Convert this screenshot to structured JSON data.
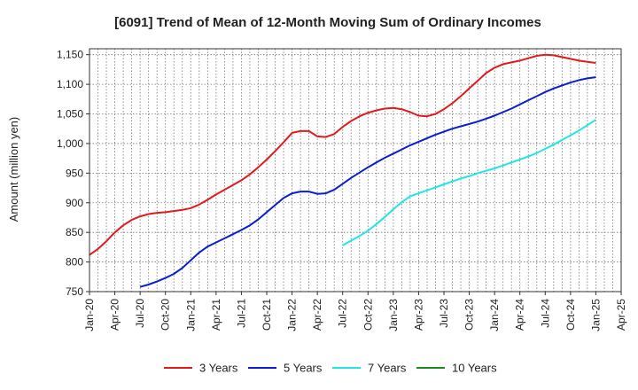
{
  "chart_data": {
    "type": "line",
    "title": "[6091]  Trend of Mean of 12-Month Moving Sum of Ordinary Incomes",
    "xlabel": "",
    "ylabel": "Amount (million yen)",
    "ylim": [
      750,
      1160
    ],
    "yticks": [
      750,
      800,
      850,
      900,
      950,
      1000,
      1050,
      1100,
      1150
    ],
    "ytick_labels": [
      "750",
      "800",
      "850",
      "900",
      "950",
      "1,000",
      "1,050",
      "1,100",
      "1,150"
    ],
    "xlim": [
      "2020-01",
      "2025-04"
    ],
    "xticks": [
      "2020-01",
      "2020-04",
      "2020-07",
      "2020-10",
      "2021-01",
      "2021-04",
      "2021-07",
      "2021-10",
      "2022-01",
      "2022-04",
      "2022-07",
      "2022-10",
      "2023-01",
      "2023-04",
      "2023-07",
      "2023-10",
      "2024-01",
      "2024-04",
      "2024-07",
      "2024-10",
      "2025-01",
      "2025-04"
    ],
    "xtick_labels": [
      "Jan-20",
      "Apr-20",
      "Jul-20",
      "Oct-20",
      "Jan-21",
      "Apr-21",
      "Jul-21",
      "Oct-21",
      "Jan-22",
      "Apr-22",
      "Jul-22",
      "Oct-22",
      "Jan-23",
      "Apr-23",
      "Jul-23",
      "Oct-23",
      "Jan-24",
      "Apr-24",
      "Jul-24",
      "Oct-24",
      "Jan-25",
      "Apr-25"
    ],
    "grid": true,
    "legend_position": "bottom",
    "series": [
      {
        "name": "3 Years",
        "color": "#e31a1c",
        "x": [
          "2020-01",
          "2020-02",
          "2020-03",
          "2020-04",
          "2020-05",
          "2020-06",
          "2020-07",
          "2020-08",
          "2020-09",
          "2020-10",
          "2020-11",
          "2020-12",
          "2021-01",
          "2021-02",
          "2021-03",
          "2021-04",
          "2021-05",
          "2021-06",
          "2021-07",
          "2021-08",
          "2021-09",
          "2021-10",
          "2021-11",
          "2021-12",
          "2022-01",
          "2022-02",
          "2022-03",
          "2022-04",
          "2022-05",
          "2022-06",
          "2022-07",
          "2022-08",
          "2022-09",
          "2022-10",
          "2022-11",
          "2022-12",
          "2023-01",
          "2023-02",
          "2023-03",
          "2023-04",
          "2023-05",
          "2023-06",
          "2023-07",
          "2023-08",
          "2023-09",
          "2023-10",
          "2023-11",
          "2023-12",
          "2024-01",
          "2024-02",
          "2024-03",
          "2024-04",
          "2024-05",
          "2024-06",
          "2024-07",
          "2024-08",
          "2024-09",
          "2024-10",
          "2024-11",
          "2024-12",
          "2025-01"
        ],
        "values": [
          812,
          822,
          835,
          850,
          862,
          871,
          877,
          881,
          883,
          884,
          886,
          888,
          891,
          897,
          905,
          914,
          922,
          930,
          938,
          948,
          960,
          973,
          987,
          1002,
          1018,
          1021,
          1021,
          1012,
          1011,
          1016,
          1028,
          1038,
          1046,
          1052,
          1056,
          1059,
          1060,
          1058,
          1053,
          1047,
          1046,
          1050,
          1058,
          1068,
          1080,
          1093,
          1106,
          1119,
          1128,
          1134,
          1137,
          1140,
          1144,
          1148,
          1150,
          1149,
          1146,
          1143,
          1140,
          1138,
          1136
        ]
      },
      {
        "name": "5 Years",
        "color": "#0a1fd1",
        "x": [
          "2020-07",
          "2020-08",
          "2020-09",
          "2020-10",
          "2020-11",
          "2020-12",
          "2021-01",
          "2021-02",
          "2021-03",
          "2021-04",
          "2021-05",
          "2021-06",
          "2021-07",
          "2021-08",
          "2021-09",
          "2021-10",
          "2021-11",
          "2021-12",
          "2022-01",
          "2022-02",
          "2022-03",
          "2022-04",
          "2022-05",
          "2022-06",
          "2022-07",
          "2022-08",
          "2022-09",
          "2022-10",
          "2022-11",
          "2022-12",
          "2023-01",
          "2023-02",
          "2023-03",
          "2023-04",
          "2023-05",
          "2023-06",
          "2023-07",
          "2023-08",
          "2023-09",
          "2023-10",
          "2023-11",
          "2023-12",
          "2024-01",
          "2024-02",
          "2024-03",
          "2024-04",
          "2024-05",
          "2024-06",
          "2024-07",
          "2024-08",
          "2024-09",
          "2024-10",
          "2024-11",
          "2024-12",
          "2025-01"
        ],
        "values": [
          758,
          762,
          767,
          773,
          780,
          790,
          803,
          816,
          826,
          833,
          840,
          847,
          854,
          862,
          872,
          884,
          896,
          908,
          916,
          919,
          919,
          915,
          916,
          922,
          932,
          942,
          951,
          960,
          968,
          976,
          983,
          990,
          997,
          1003,
          1009,
          1015,
          1020,
          1025,
          1029,
          1033,
          1037,
          1042,
          1047,
          1053,
          1059,
          1066,
          1073,
          1080,
          1087,
          1093,
          1098,
          1103,
          1107,
          1110,
          1112
        ]
      },
      {
        "name": "7 Years",
        "color": "#22e5e5",
        "x": [
          "2022-07",
          "2022-08",
          "2022-09",
          "2022-10",
          "2022-11",
          "2022-12",
          "2023-01",
          "2023-02",
          "2023-03",
          "2023-04",
          "2023-05",
          "2023-06",
          "2023-07",
          "2023-08",
          "2023-09",
          "2023-10",
          "2023-11",
          "2023-12",
          "2024-01",
          "2024-02",
          "2024-03",
          "2024-04",
          "2024-05",
          "2024-06",
          "2024-07",
          "2024-08",
          "2024-09",
          "2024-10",
          "2024-11",
          "2024-12",
          "2025-01"
        ],
        "values": [
          828,
          836,
          844,
          853,
          864,
          876,
          889,
          901,
          911,
          916,
          921,
          926,
          931,
          936,
          941,
          945,
          950,
          954,
          958,
          963,
          968,
          973,
          978,
          984,
          991,
          998,
          1006,
          1014,
          1022,
          1031,
          1040
        ]
      },
      {
        "name": "10 Years",
        "color": "#1f8a1f",
        "x": [],
        "values": []
      }
    ]
  }
}
